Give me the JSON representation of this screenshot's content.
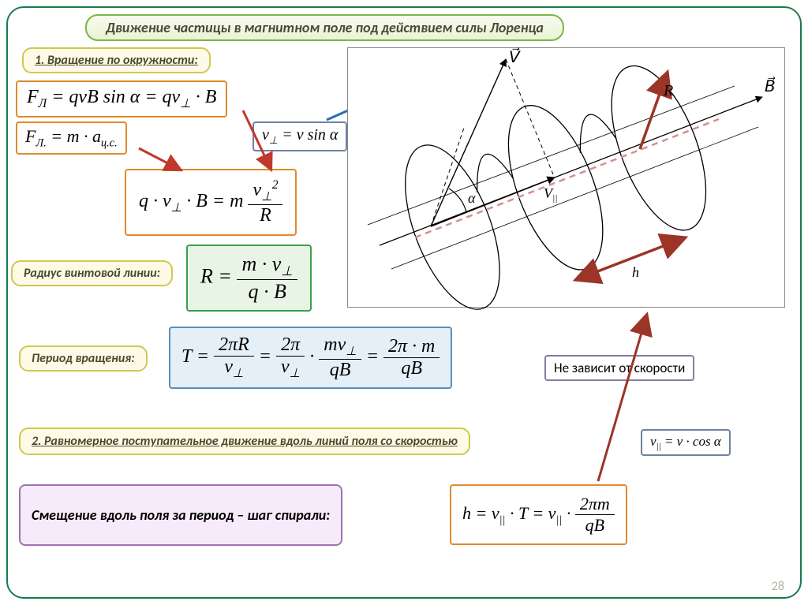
{
  "title": "Движение частицы в магнитном поле под действием силы Лоренца",
  "section1": "1. Вращение по окружности:",
  "formula_lorentz": "F<sub>Л</sub> = qvB sin α = qv<sub>⊥</sub> · B",
  "formula_centripetal": "F<sub>Л.</sub> = m · a<sub>ц.с.</sub>",
  "formula_vperp": "v<sub>⊥</sub> = v sin α",
  "formula_combined_left": "q · v<sub>⊥</sub> · B = m",
  "formula_combined_frac_num": "v<sub>⊥</sub><sup>2</sup>",
  "formula_combined_frac_den": "R",
  "label_radius": "Радиус винтовой линии:",
  "radius_lhs": "R =",
  "radius_num": "m · v<sub>⊥</sub>",
  "radius_den": "q · B",
  "label_period": "Период вращения:",
  "period_lhs": "T =",
  "period_f1_num": "2πR",
  "period_f1_den": "v<sub>⊥</sub>",
  "period_f2_num": "2π",
  "period_f2_den": "v<sub>⊥</sub>",
  "period_f3_num": "mv<sub>⊥</sub>",
  "period_f3_den": "qB",
  "period_f4_num": "2π · m",
  "period_f4_den": "qB",
  "note_indep": "Не зависит от скорости",
  "section2": "2. Равномерное поступательное движение вдоль линий поля со скоростью",
  "formula_vpar": "v<sub>||</sub> = v · cos α",
  "label_step": "Смещение вдоль поля за период – шаг спирали:",
  "step_lhs": "h = v<sub>||</sub> · T = v<sub>||</sub> ·",
  "step_num": "2πm",
  "step_den": "qB",
  "slide_number": "28",
  "diagram": {
    "axis_color": "#000",
    "helix_color": "#000",
    "dashed_color": "#b08080",
    "blue_arrow": "#2a6db5",
    "brown_arrow": "#9a3527",
    "label_V": "V",
    "label_B": "B",
    "label_R": "R",
    "label_Vpar": "V||",
    "label_alpha": "α",
    "label_h": "h"
  },
  "colors": {
    "frame": "#1a7a4a",
    "title_border": "#7bb547",
    "orange": "#e08b2a",
    "green": "#3aa04a",
    "blue": "#5b8fb8",
    "purple": "#a070b0",
    "yellow": "#d0c84f",
    "red_arrow": "#c0392b"
  }
}
